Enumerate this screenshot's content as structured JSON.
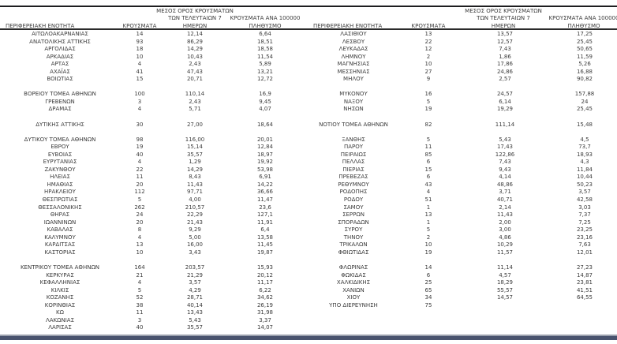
{
  "colors": {
    "text": "#3c3c3c",
    "top_border": "#1d1d1f",
    "header_underline": "#2b2b2b",
    "bottom_bar_light": "#9aa0ad",
    "bottom_bar_dark": "#49536e",
    "background": "#ffffff"
  },
  "headers": {
    "col1": "ΠΕΡΙΦΕΡΕΙΑΚΗ ΕΝΟΤΗΤΑ",
    "col2": "ΚΡΟΥΣΜΑΤΑ",
    "col3_line1": "ΜΕΣΟΣ ΟΡΟΣ ΚΡΟΥΣΜΑΤΩΝ",
    "col3_line2": "ΤΩΝ ΤΕΛΕΥΤΑΙΩΝ 7",
    "col3_line3": "ΗΜΕΡΩΝ",
    "col4_line1": "ΚΡΟΥΣΜΑΤΑ ΑΝΑ 100000",
    "col4_line2": "ΠΛΗΘΥΣΜΟ"
  },
  "chart_data": {
    "type": "table",
    "title": "",
    "columns": [
      "ΠΕΡΙΦΕΡΕΙΑΚΗ ΕΝΟΤΗΤΑ",
      "ΚΡΟΥΣΜΑΤΑ",
      "ΜΕΣΟΣ ΟΡΟΣ ΚΡΟΥΣΜΑΤΩΝ ΤΩΝ ΤΕΛΕΥΤΑΙΩΝ 7 ΗΜΕΡΩΝ",
      "ΚΡΟΥΣΜΑΤΑ ΑΝΑ 100000 ΠΛΗΘΥΣΜΟ"
    ],
    "left_sections": [
      {
        "rows": [
          [
            "ΑΙΤΩΛΟΑΚΑΡΝΑΝΙΑΣ",
            "14",
            "12,14",
            "6,64"
          ],
          [
            "ΑΝΑΤΟΛΙΚΗΣ ΑΤΤΙΚΗΣ",
            "93",
            "86,29",
            "18,51"
          ],
          [
            "ΑΡΓΟΛΙΔΑΣ",
            "18",
            "14,29",
            "18,58"
          ],
          [
            "ΑΡΚΑΔΙΑΣ",
            "10",
            "10,43",
            "11,54"
          ],
          [
            "ΑΡΤΑΣ",
            "4",
            "2,43",
            "5,89"
          ],
          [
            "ΑΧΑΪΑΣ",
            "41",
            "47,43",
            "13,21"
          ],
          [
            "ΒΟΙΩΤΙΑΣ",
            "15",
            "20,71",
            "12,72"
          ]
        ]
      },
      {
        "rows": [
          [
            "ΒΟΡΕΙΟΥ ΤΟΜΕΑ ΑΘΗΝΩΝ",
            "100",
            "110,14",
            "16,9"
          ],
          [
            "ΓΡΕΒΕΝΩΝ",
            "3",
            "2,43",
            "9,45"
          ],
          [
            "ΔΡΑΜΑΣ",
            "4",
            "5,71",
            "4,07"
          ]
        ]
      },
      {
        "rows": [
          [
            "ΔΥΤΙΚΗΣ ΑΤΤΙΚΗΣ",
            "30",
            "27,00",
            "18,64"
          ]
        ]
      },
      {
        "rows": [
          [
            "ΔΥΤΙΚΟΥ ΤΟΜΕΑ ΑΘΗΝΩΝ",
            "98",
            "116,00",
            "20,01"
          ],
          [
            "ΕΒΡΟΥ",
            "19",
            "15,14",
            "12,84"
          ],
          [
            "ΕΥΒΟΙΑΣ",
            "40",
            "35,57",
            "18,97"
          ],
          [
            "ΕΥΡΥΤΑΝΙΑΣ",
            "4",
            "1,29",
            "19,92"
          ],
          [
            "ΖΑΚΥΝΘΟΥ",
            "22",
            "14,29",
            "53,98"
          ],
          [
            "ΗΛΕΙΑΣ",
            "11",
            "8,43",
            "6,91"
          ],
          [
            "ΗΜΑΘΙΑΣ",
            "20",
            "11,43",
            "14,22"
          ],
          [
            "ΗΡΑΚΛΕΙΟΥ",
            "112",
            "97,71",
            "36,66"
          ],
          [
            "ΘΕΣΠΡΩΤΙΑΣ",
            "5",
            "4,00",
            "11,47"
          ],
          [
            "ΘΕΣΣΑΛΟΝΙΚΗΣ",
            "262",
            "210,57",
            "23,6"
          ],
          [
            "ΘΗΡΑΣ",
            "24",
            "22,29",
            "127,1"
          ],
          [
            "ΙΩΑΝΝΙΝΩΝ",
            "20",
            "21,43",
            "11,91"
          ],
          [
            "ΚΑΒΑΛΑΣ",
            "8",
            "9,29",
            "6,4"
          ],
          [
            "ΚΑΛΥΜΝΟΥ",
            "4",
            "5,00",
            "13,58"
          ],
          [
            "ΚΑΡΔΙΤΣΑΣ",
            "13",
            "16,00",
            "11,45"
          ],
          [
            "ΚΑΣΤΟΡΙΑΣ",
            "10",
            "3,43",
            "19,87"
          ]
        ]
      },
      {
        "rows": [
          [
            "ΚΕΝΤΡΙΚΟΥ ΤΟΜΕΑ ΑΘΗΝΩΝ",
            "164",
            "203,57",
            "15,93"
          ],
          [
            "ΚΕΡΚΥΡΑΣ",
            "21",
            "21,29",
            "20,12"
          ],
          [
            "ΚΕΦΑΛΛΗΝΙΑΣ",
            "4",
            "3,57",
            "11,17"
          ],
          [
            "ΚΙΛΚΙΣ",
            "5",
            "4,29",
            "6,22"
          ],
          [
            "ΚΟΖΑΝΗΣ",
            "52",
            "28,71",
            "34,62"
          ],
          [
            "ΚΟΡΙΝΘΙΑΣ",
            "38",
            "40,14",
            "26,19"
          ],
          [
            "ΚΩ",
            "11",
            "13,43",
            "31,98"
          ],
          [
            "ΛΑΚΩΝΙΑΣ",
            "3",
            "5,43",
            "3,37"
          ],
          [
            "ΛΑΡΙΣΑΣ",
            "40",
            "35,57",
            "14,07"
          ]
        ]
      }
    ],
    "right_sections": [
      {
        "rows": [
          [
            "ΛΑΣΙΘΙΟΥ",
            "13",
            "13,57",
            "17,25"
          ],
          [
            "ΛΕΣΒΟΥ",
            "22",
            "12,57",
            "25,45"
          ],
          [
            "ΛΕΥΚΑΔΑΣ",
            "12",
            "7,43",
            "50,65"
          ],
          [
            "ΛΗΜΝΟΥ",
            "2",
            "1,86",
            "11,59"
          ],
          [
            "ΜΑΓΝΗΣΙΑΣ",
            "10",
            "17,86",
            "5,26"
          ],
          [
            "ΜΕΣΣΗΝΙΑΣ",
            "27",
            "24,86",
            "16,88"
          ],
          [
            "ΜΗΛΟΥ",
            "9",
            "2,57",
            "90,82"
          ]
        ]
      },
      {
        "rows": [
          [
            "ΜΥΚΟΝΟΥ",
            "16",
            "24,57",
            "157,88"
          ],
          [
            "ΝΑΞΟΥ",
            "5",
            "6,14",
            "24"
          ],
          [
            "ΝΗΣΩΝ",
            "19",
            "19,29",
            "25,45"
          ]
        ]
      },
      {
        "rows": [
          [
            "ΝΟΤΙΟΥ ΤΟΜΕΑ ΑΘΗΝΩΝ",
            "82",
            "111,14",
            "15,48"
          ]
        ]
      },
      {
        "rows": [
          [
            "ΞΑΝΘΗΣ",
            "5",
            "5,43",
            "4,5"
          ],
          [
            "ΠΑΡΟΥ",
            "11",
            "17,43",
            "73,7"
          ],
          [
            "ΠΕΙΡΑΙΩΣ",
            "85",
            "122,86",
            "18,93"
          ],
          [
            "ΠΕΛΛΑΣ",
            "6",
            "7,43",
            "4,3"
          ],
          [
            "ΠΙΕΡΙΑΣ",
            "15",
            "9,43",
            "11,84"
          ],
          [
            "ΠΡΕΒΕΖΑΣ",
            "6",
            "4,14",
            "10,44"
          ],
          [
            "ΡΕΘΥΜΝΟΥ",
            "43",
            "48,86",
            "50,23"
          ],
          [
            "ΡΟΔΟΠΗΣ",
            "4",
            "3,71",
            "3,57"
          ],
          [
            "ΡΟΔΟΥ",
            "51",
            "40,71",
            "42,58"
          ],
          [
            "ΣΑΜΟΥ",
            "1",
            "2,14",
            "3,03"
          ],
          [
            "ΣΕΡΡΩΝ",
            "13",
            "11,43",
            "7,37"
          ],
          [
            "ΣΠΟΡΑΔΩΝ",
            "1",
            "2,00",
            "7,25"
          ],
          [
            "ΣΥΡΟΥ",
            "5",
            "3,00",
            "23,25"
          ],
          [
            "ΤΗΝΟΥ",
            "2",
            "4,86",
            "23,16"
          ],
          [
            "ΤΡΙΚΑΛΩΝ",
            "10",
            "10,29",
            "7,63"
          ],
          [
            "ΦΘΙΩΤΙΔΑΣ",
            "19",
            "11,57",
            "12,01"
          ]
        ]
      },
      {
        "rows": [
          [
            "ΦΛΩΡΙΝΑΣ",
            "14",
            "11,14",
            "27,23"
          ],
          [
            "ΦΩΚΙΔΑΣ",
            "6",
            "4,57",
            "14,87"
          ],
          [
            "ΧΑΛΚΙΔΙΚΗΣ",
            "25",
            "18,29",
            "23,81"
          ],
          [
            "ΧΑΝΙΩΝ",
            "65",
            "55,57",
            "41,51"
          ],
          [
            "ΧΙΟΥ",
            "34",
            "14,57",
            "64,55"
          ],
          [
            "ΥΠΟ ΔΙΕΡΕΥΝΗΣΗ",
            "75",
            "",
            ""
          ]
        ]
      }
    ]
  }
}
